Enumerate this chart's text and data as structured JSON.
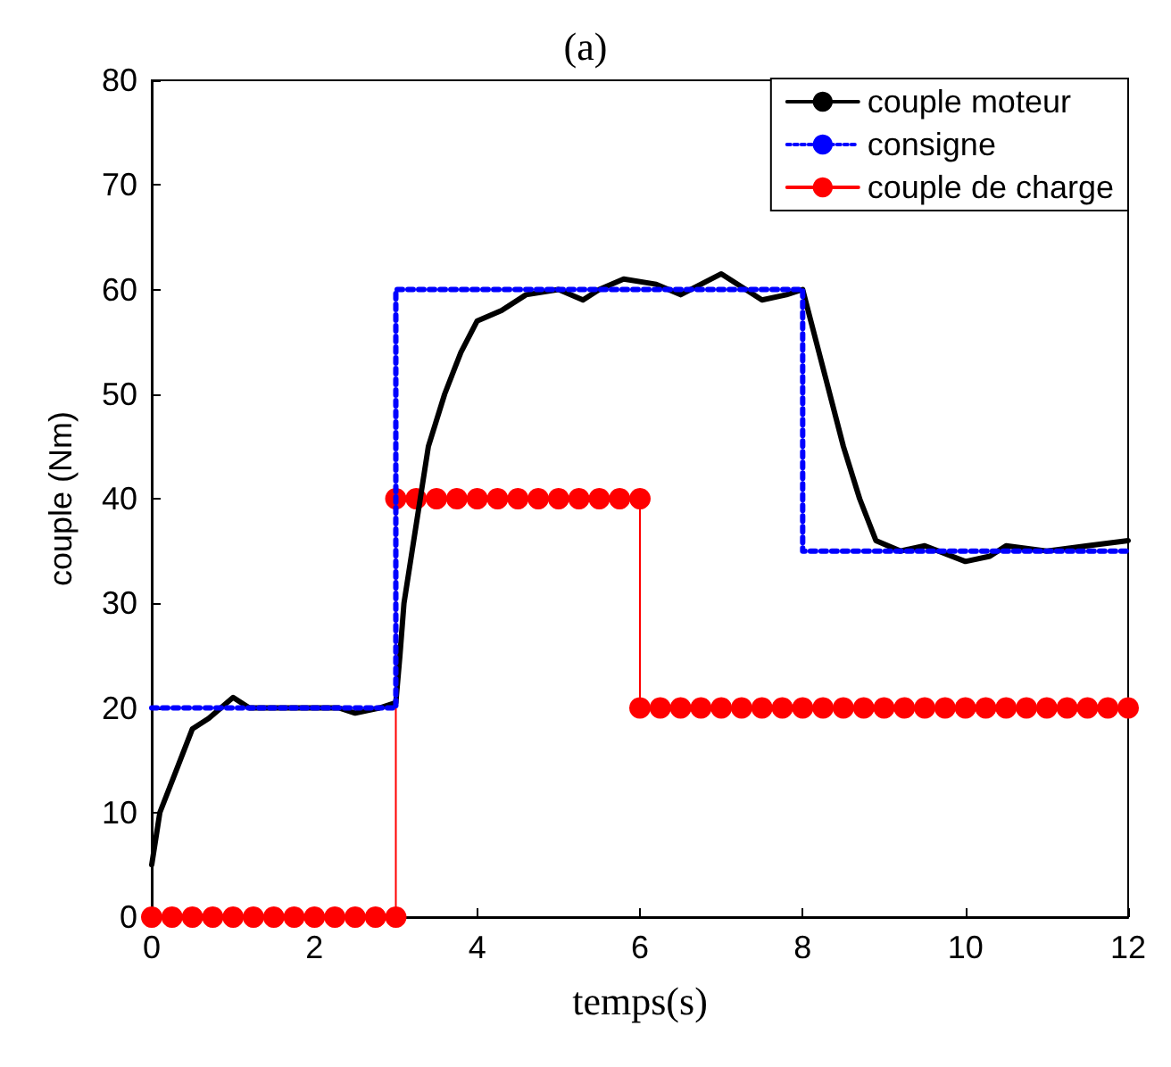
{
  "chart_data": {
    "type": "line",
    "title": "(a)",
    "xlabel": "temps(s)",
    "ylabel": "couple (Nm)",
    "xlim": [
      0,
      12
    ],
    "ylim": [
      0,
      80
    ],
    "xticks": [
      0,
      2,
      4,
      6,
      8,
      10,
      12
    ],
    "yticks": [
      0,
      10,
      20,
      30,
      40,
      50,
      60,
      70,
      80
    ],
    "grid": false,
    "legend": "top right",
    "series": [
      {
        "name": "couple moteur",
        "color": "#000000",
        "marker": "none",
        "line_style": "solid",
        "x": [
          0,
          0.1,
          0.3,
          0.5,
          0.7,
          1.0,
          1.2,
          1.5,
          2.0,
          2.3,
          2.5,
          2.8,
          3.0,
          3.05,
          3.1,
          3.2,
          3.3,
          3.4,
          3.6,
          3.8,
          4.0,
          4.3,
          4.6,
          5.0,
          5.3,
          5.5,
          5.8,
          6.2,
          6.5,
          7.0,
          7.3,
          7.5,
          7.8,
          8.0,
          8.1,
          8.3,
          8.5,
          8.7,
          8.9,
          9.2,
          9.5,
          10.0,
          10.3,
          10.5,
          11.0,
          11.5,
          12.0
        ],
        "values": [
          5,
          10,
          14,
          18,
          19,
          21,
          20,
          20,
          20,
          20,
          19.5,
          20,
          20.5,
          25,
          30,
          35,
          40,
          45,
          50,
          54,
          57,
          58,
          59.5,
          60,
          59,
          60,
          61,
          60.5,
          59.5,
          61.5,
          60,
          59,
          59.5,
          60,
          57,
          51,
          45,
          40,
          36,
          35,
          35.5,
          34,
          34.5,
          35.5,
          35,
          35.5,
          36
        ]
      },
      {
        "name": "consigne",
        "color": "#0000ff",
        "marker": "none",
        "line_style": "dotted",
        "x": [
          0,
          3,
          3,
          8,
          8,
          12
        ],
        "values": [
          20,
          20,
          60,
          60,
          35,
          35
        ]
      },
      {
        "name": "couple de charge",
        "color": "#ff0000",
        "marker": "circle",
        "line_style": "solid",
        "x": [
          0,
          0.25,
          0.5,
          0.75,
          1,
          1.25,
          1.5,
          1.75,
          2,
          2.25,
          2.5,
          2.75,
          3,
          3,
          3.25,
          3.5,
          3.75,
          4,
          4.25,
          4.5,
          4.75,
          5,
          5.25,
          5.5,
          5.75,
          6,
          6,
          6.25,
          6.5,
          6.75,
          7,
          7.25,
          7.5,
          7.75,
          8,
          8.25,
          8.5,
          8.75,
          9,
          9.25,
          9.5,
          9.75,
          10,
          10.25,
          10.5,
          10.75,
          11,
          11.25,
          11.5,
          11.75,
          12
        ],
        "values": [
          0,
          0,
          0,
          0,
          0,
          0,
          0,
          0,
          0,
          0,
          0,
          0,
          0,
          40,
          40,
          40,
          40,
          40,
          40,
          40,
          40,
          40,
          40,
          40,
          40,
          40,
          20,
          20,
          20,
          20,
          20,
          20,
          20,
          20,
          20,
          20,
          20,
          20,
          20,
          20,
          20,
          20,
          20,
          20,
          20,
          20,
          20,
          20,
          20,
          20,
          20
        ]
      }
    ]
  }
}
